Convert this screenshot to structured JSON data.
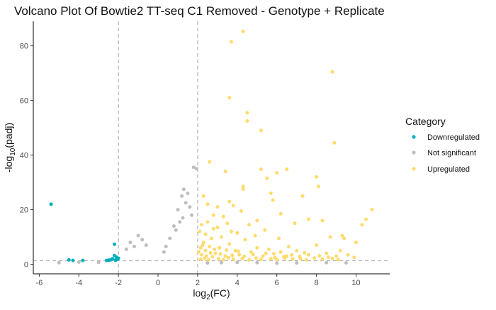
{
  "chart_data": {
    "type": "scatter",
    "title": "Volcano Plot Of Bowtie2 TT-seq C1 Removed - Genotype + Replicate",
    "xlabel": {
      "base": "log",
      "sub": "2",
      "rest": "(FC)"
    },
    "ylabel": {
      "pre": "-log",
      "sub": "10",
      "rest": "(padj)"
    },
    "xlim": [
      -6.3,
      11.7
    ],
    "ylim": [
      -3.5,
      89
    ],
    "x_ticks": [
      -6,
      -4,
      -2,
      0,
      2,
      4,
      6,
      8,
      10
    ],
    "y_ticks": [
      0,
      20,
      40,
      60,
      80
    ],
    "fc_thresholds": [
      -2,
      2
    ],
    "padj_threshold_neglog10": 1.3,
    "grid": false,
    "legend": {
      "title": "Category",
      "position": "right",
      "entries": [
        {
          "label": "Downregulated",
          "color": "#00AFBB"
        },
        {
          "label": "Not significant",
          "color": "#BEBEBE"
        },
        {
          "label": "Upregulated",
          "color": "#FFDB6D"
        }
      ]
    },
    "series": [
      {
        "name": "Downregulated",
        "color": "#00AFBB",
        "points": [
          [
            -5.4,
            22.0
          ],
          [
            -4.5,
            1.6
          ],
          [
            -4.3,
            1.4
          ],
          [
            -3.8,
            1.4
          ],
          [
            -2.5,
            1.5
          ],
          [
            -2.2,
            7.3
          ],
          [
            -2.2,
            3.2
          ],
          [
            -2.1,
            2.6
          ],
          [
            -2.3,
            2.0
          ],
          [
            -2.05,
            1.8
          ],
          [
            -2.4,
            1.6
          ],
          [
            -2.15,
            1.5
          ],
          [
            -2.6,
            1.4
          ],
          [
            -2.0,
            2.2
          ]
        ]
      },
      {
        "name": "Not significant",
        "color": "#BEBEBE",
        "points": [
          [
            1.8,
            35.5
          ],
          [
            1.95,
            35.0
          ],
          [
            1.3,
            27.5
          ],
          [
            1.5,
            26.0
          ],
          [
            1.2,
            25.0
          ],
          [
            1.4,
            22.5
          ],
          [
            1.6,
            21.0
          ],
          [
            1.0,
            20.0
          ],
          [
            1.7,
            18.0
          ],
          [
            1.25,
            17.0
          ],
          [
            -1.0,
            10.5
          ],
          [
            -0.8,
            9.0
          ],
          [
            -1.4,
            8.0
          ],
          [
            -0.6,
            7.0
          ],
          [
            -1.2,
            6.5
          ],
          [
            -1.6,
            5.5
          ],
          [
            0.8,
            14.0
          ],
          [
            0.9,
            12.5
          ],
          [
            1.1,
            15.5
          ],
          [
            0.6,
            9.5
          ],
          [
            0.4,
            6.5
          ],
          [
            0.3,
            4.5
          ],
          [
            2.5,
            0.5
          ],
          [
            3.2,
            0.6
          ],
          [
            4.0,
            0.7
          ],
          [
            5.0,
            0.6
          ],
          [
            6.0,
            0.4
          ],
          [
            7.0,
            0.5
          ],
          [
            8.5,
            0.6
          ],
          [
            -3.0,
            0.7
          ],
          [
            -4.0,
            0.8
          ],
          [
            -5.0,
            0.6
          ],
          [
            9.5,
            0.5
          ]
        ]
      },
      {
        "name": "Upregulated",
        "color": "#FFDB6D",
        "points": [
          [
            4.3,
            85.3
          ],
          [
            3.7,
            81.5
          ],
          [
            8.8,
            70.5
          ],
          [
            3.6,
            61.0
          ],
          [
            4.5,
            55.5
          ],
          [
            4.5,
            52.5
          ],
          [
            5.2,
            49.0
          ],
          [
            8.9,
            44.5
          ],
          [
            5.2,
            34.8
          ],
          [
            6.5,
            34.8
          ],
          [
            2.6,
            37.5
          ],
          [
            3.4,
            34.0
          ],
          [
            6.0,
            33.5
          ],
          [
            8.0,
            32.0
          ],
          [
            5.5,
            31.5
          ],
          [
            7.3,
            25.0
          ],
          [
            4.3,
            28.5
          ],
          [
            4.3,
            27.5
          ],
          [
            8.1,
            28.5
          ],
          [
            5.7,
            26.0
          ],
          [
            2.3,
            25.0
          ],
          [
            3.6,
            23.0
          ],
          [
            4.2,
            19.5
          ],
          [
            10.8,
            20.0
          ],
          [
            5.8,
            23.5
          ],
          [
            2.5,
            22.0
          ],
          [
            3.0,
            21.0
          ],
          [
            3.8,
            21.5
          ],
          [
            10.5,
            16.5
          ],
          [
            6.2,
            18.5
          ],
          [
            7.6,
            16.5
          ],
          [
            8.3,
            16.0
          ],
          [
            10.3,
            14.5
          ],
          [
            5.0,
            16.0
          ],
          [
            6.9,
            15.0
          ],
          [
            2.8,
            18.0
          ],
          [
            3.3,
            17.5
          ],
          [
            4.6,
            14.5
          ],
          [
            9.3,
            10.5
          ],
          [
            9.4,
            9.5
          ],
          [
            8.7,
            10.0
          ],
          [
            10.0,
            8.0
          ],
          [
            8.0,
            7.0
          ],
          [
            9.2,
            5.0
          ],
          [
            9.6,
            3.5
          ],
          [
            9.9,
            2.5
          ],
          [
            8.5,
            4.0
          ],
          [
            7.0,
            5.0
          ],
          [
            6.6,
            6.5
          ],
          [
            7.6,
            3.5
          ],
          [
            2.2,
            3.5
          ],
          [
            2.4,
            5.0
          ],
          [
            2.6,
            6.5
          ],
          [
            2.3,
            8.0
          ],
          [
            2.7,
            9.5
          ],
          [
            2.9,
            4.0
          ],
          [
            3.1,
            6.0
          ],
          [
            3.4,
            3.0
          ],
          [
            3.6,
            7.5
          ],
          [
            3.9,
            5.0
          ],
          [
            4.1,
            3.5
          ],
          [
            4.4,
            9.0
          ],
          [
            4.7,
            4.5
          ],
          [
            5.0,
            6.0
          ],
          [
            5.3,
            3.0
          ],
          [
            5.6,
            5.5
          ],
          [
            5.9,
            2.5
          ],
          [
            6.2,
            4.5
          ],
          [
            6.5,
            3.0
          ],
          [
            2.1,
            12.0
          ],
          [
            2.4,
            11.0
          ],
          [
            2.8,
            13.0
          ],
          [
            3.2,
            10.0
          ],
          [
            3.7,
            12.0
          ],
          [
            4.0,
            11.5
          ],
          [
            4.9,
            10.5
          ],
          [
            5.4,
            12.5
          ],
          [
            6.1,
            9.5
          ],
          [
            2.2,
            14.5
          ],
          [
            2.5,
            15.5
          ],
          [
            3.0,
            13.5
          ],
          [
            3.5,
            15.0
          ],
          [
            2.15,
            1.8
          ],
          [
            2.35,
            2.2
          ],
          [
            2.55,
            1.6
          ],
          [
            2.75,
            2.8
          ],
          [
            3.05,
            2.0
          ],
          [
            3.3,
            1.7
          ],
          [
            3.55,
            2.4
          ],
          [
            3.8,
            1.9
          ],
          [
            4.25,
            2.1
          ],
          [
            4.6,
            1.6
          ],
          [
            4.95,
            2.3
          ],
          [
            5.2,
            1.8
          ],
          [
            5.7,
            2.0
          ],
          [
            6.0,
            1.7
          ],
          [
            6.4,
            2.2
          ],
          [
            6.8,
            1.9
          ],
          [
            7.2,
            2.0
          ],
          [
            7.5,
            1.6
          ],
          [
            7.9,
            2.3
          ],
          [
            8.3,
            1.9
          ],
          [
            8.8,
            2.1
          ],
          [
            9.1,
            1.7
          ],
          [
            2.05,
            4.5
          ],
          [
            2.15,
            6.0
          ],
          [
            2.25,
            7.0
          ],
          [
            2.45,
            3.0
          ],
          [
            2.65,
            4.2
          ],
          [
            2.85,
            5.5
          ],
          [
            3.15,
            3.8
          ],
          [
            3.45,
            5.2
          ],
          [
            3.75,
            3.3
          ],
          [
            4.05,
            4.8
          ],
          [
            4.35,
            2.9
          ],
          [
            4.8,
            3.6
          ],
          [
            5.45,
            4.0
          ],
          [
            5.85,
            3.9
          ],
          [
            6.35,
            2.8
          ],
          [
            6.75,
            3.4
          ],
          [
            7.15,
            2.9
          ],
          [
            7.4,
            4.2
          ],
          [
            8.15,
            3.1
          ],
          [
            8.6,
            2.6
          ],
          [
            9.0,
            3.0
          ]
        ]
      }
    ]
  }
}
